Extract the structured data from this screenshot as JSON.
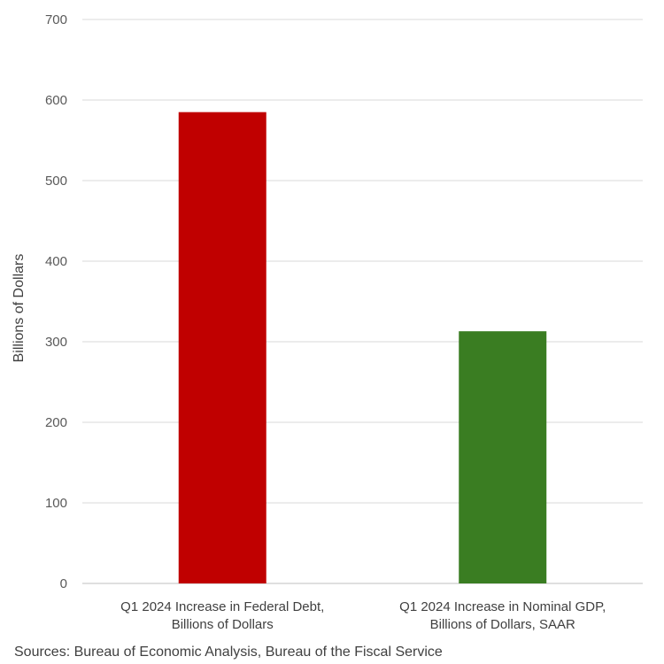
{
  "chart_data": {
    "type": "bar",
    "categories": [
      [
        "Q1 2024 Increase in Federal Debt,",
        "Billions of Dollars"
      ],
      [
        "Q1 2024 Increase in Nominal GDP,",
        "Billions of Dollars, SAAR"
      ]
    ],
    "values": [
      585,
      313
    ],
    "bar_colors": [
      "#C00000",
      "#3A7D22"
    ],
    "title": "",
    "xlabel": "",
    "ylabel": "Billions of Dollars",
    "ylim": [
      0,
      700
    ],
    "yticks": [
      0,
      100,
      200,
      300,
      400,
      500,
      600,
      700
    ],
    "grid": true,
    "legend": "none"
  },
  "source": "Sources: Bureau of Economic Analysis, Bureau of the Fiscal Service"
}
